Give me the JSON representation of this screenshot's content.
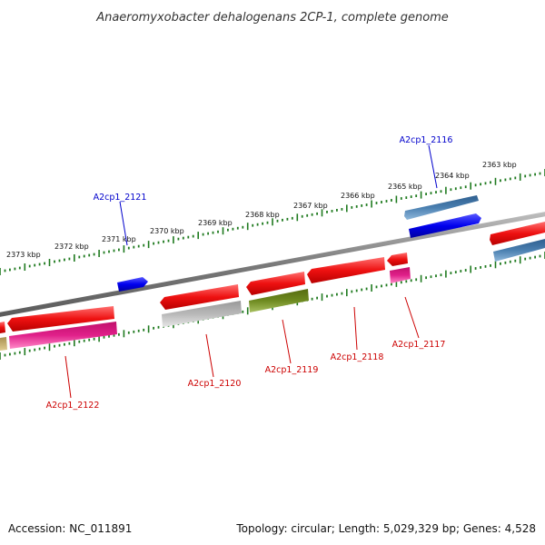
{
  "title": "Anaeromyxobacter dehalogenans 2CP-1, complete genome",
  "footer": {
    "accession": "Accession: NC_011891",
    "summary": "Topology: circular; Length: 5,029,329 bp; Genes: 4,528"
  },
  "colors": {
    "backbone": "#7a7a7a",
    "tick_dots": "#1f7a1f",
    "forward_label": "#0000cc",
    "reverse_label": "#cc0000",
    "cds_red": "#ee1111",
    "cds_blue": "#0000ee",
    "steel_blue": "#4a7fb0",
    "magenta": "#e0208a",
    "olive": "#6e8a20",
    "gray": "#b8b8b8",
    "tan": "#c8b070"
  },
  "scale_labels": [
    "2373 kbp",
    "2372 kbp",
    "2371 kbp",
    "2370 kbp",
    "2369 kbp",
    "2368 kbp",
    "2367 kbp",
    "2366 kbp",
    "2365 kbp",
    "2364 kbp",
    "2363 kbp"
  ],
  "gene_labels": {
    "a2cp1_2116": "A2cp1_2116",
    "a2cp1_2121": "A2cp1_2121",
    "a2cp1_2117": "A2cp1_2117",
    "a2cp1_2118": "A2cp1_2118",
    "a2cp1_2119": "A2cp1_2119",
    "a2cp1_2120": "A2cp1_2120",
    "a2cp1_2122": "A2cp1_2122"
  }
}
